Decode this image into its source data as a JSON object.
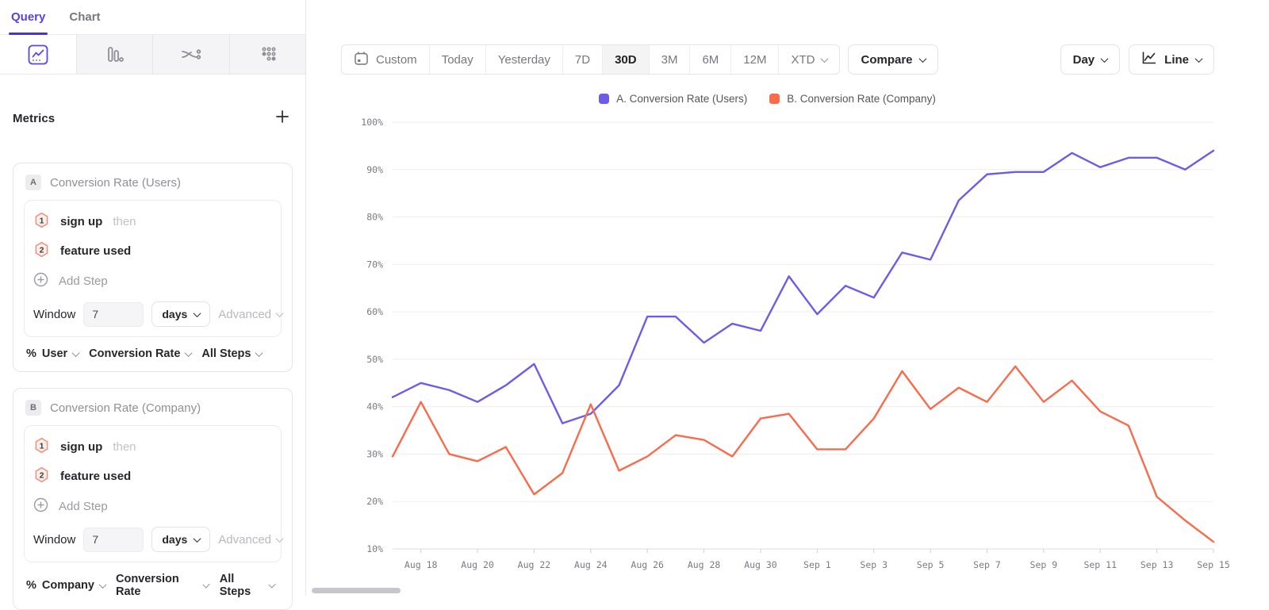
{
  "sidebar": {
    "tabs": {
      "query": "Query",
      "chart": "Chart"
    },
    "metrics_heading": "Metrics",
    "cards": [
      {
        "badge": "A",
        "title": "Conversion Rate (Users)",
        "step1_num": "1",
        "step1_label": "sign up",
        "step1_suffix": "then",
        "step2_num": "2",
        "step2_label": "feature used",
        "add_step": "Add Step",
        "window_label": "Window",
        "window_value": "7",
        "window_unit": "days",
        "advanced": "Advanced",
        "measure_prefix": "%",
        "measure_entity": "User",
        "measure_metric": "Conversion Rate",
        "measure_steps": "All Steps"
      },
      {
        "badge": "B",
        "title": "Conversion Rate (Company)",
        "step1_num": "1",
        "step1_label": "sign up",
        "step1_suffix": "then",
        "step2_num": "2",
        "step2_label": "feature used",
        "add_step": "Add Step",
        "window_label": "Window",
        "window_value": "7",
        "window_unit": "days",
        "advanced": "Advanced",
        "measure_prefix": "%",
        "measure_entity": "Company",
        "measure_metric": "Conversion Rate",
        "measure_steps": "All Steps"
      }
    ]
  },
  "toolbar": {
    "date_ranges": [
      "Custom",
      "Today",
      "Yesterday",
      "7D",
      "30D",
      "3M",
      "6M",
      "12M",
      "XTD"
    ],
    "active_range": "30D",
    "compare": "Compare",
    "granularity": "Day",
    "chart_style": "Line"
  },
  "legend": [
    {
      "label": "A. Conversion Rate (Users)",
      "color": "#6e5ce8"
    },
    {
      "label": "B. Conversion Rate (Company)",
      "color": "#f96b4b"
    }
  ],
  "chart_data": {
    "type": "line",
    "title": "",
    "xlabel": "",
    "ylabel": "",
    "y_unit": "%",
    "ylim": [
      10,
      100
    ],
    "ytick_step": 10,
    "grid": true,
    "legend_position": "top-center",
    "x": [
      "Aug 17",
      "Aug 18",
      "Aug 19",
      "Aug 20",
      "Aug 21",
      "Aug 22",
      "Aug 23",
      "Aug 24",
      "Aug 25",
      "Aug 26",
      "Aug 27",
      "Aug 28",
      "Aug 29",
      "Aug 30",
      "Aug 31",
      "Sep 1",
      "Sep 2",
      "Sep 3",
      "Sep 4",
      "Sep 5",
      "Sep 6",
      "Sep 7",
      "Sep 8",
      "Sep 9",
      "Sep 10",
      "Sep 11",
      "Sep 12",
      "Sep 13",
      "Sep 14",
      "Sep 15"
    ],
    "x_tick_labels": [
      "Aug 18",
      "Aug 20",
      "Aug 22",
      "Aug 24",
      "Aug 26",
      "Aug 28",
      "Aug 30",
      "Sep 1",
      "Sep 3",
      "Sep 5",
      "Sep 7",
      "Sep 9",
      "Sep 11",
      "Sep 13",
      "Sep 15"
    ],
    "series": [
      {
        "name": "A. Conversion Rate (Users)",
        "color": "#6e5ce8",
        "values": [
          42,
          45,
          43.5,
          41,
          44.5,
          49,
          36.5,
          38.5,
          44.5,
          59,
          59,
          53.5,
          57.5,
          56,
          67.5,
          59.5,
          65.5,
          63,
          72.5,
          71,
          83.5,
          89,
          89.5,
          89.5,
          93.5,
          90.5,
          92.5,
          92.5,
          90,
          94
        ]
      },
      {
        "name": "B. Conversion Rate (Company)",
        "color": "#f96b4b",
        "values": [
          29.5,
          41,
          30,
          28.5,
          31.5,
          21.5,
          26,
          40.5,
          26.5,
          29.5,
          34,
          33,
          29.5,
          37.5,
          38.5,
          31,
          31,
          37.5,
          47.5,
          39.5,
          44,
          41,
          48.5,
          41,
          45.5,
          39,
          36,
          21,
          16,
          11.5
        ]
      }
    ]
  }
}
